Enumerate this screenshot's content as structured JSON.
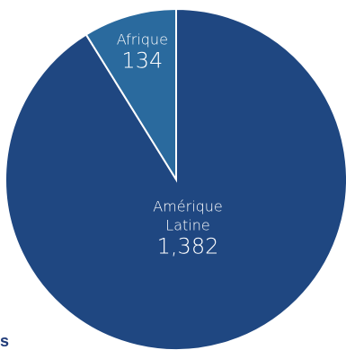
{
  "chart_data": {
    "type": "pie",
    "slices": [
      {
        "label_lines": [
          "Amérique",
          "Latine"
        ],
        "value": 1382,
        "value_label": "1,382",
        "color": "#1f4781"
      },
      {
        "label_lines": [
          "Afrique"
        ],
        "value": 134,
        "value_label": "134",
        "color": "#2a6a9e"
      }
    ],
    "start_angle_deg": 0,
    "direction": "clockwise",
    "separator_color": "#ffffff"
  },
  "footnote_text": "s"
}
